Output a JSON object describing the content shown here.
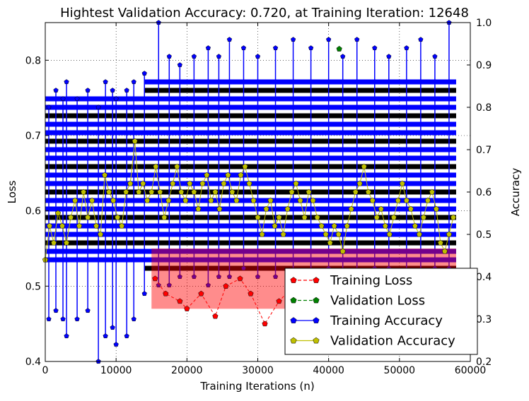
{
  "chart_data": {
    "type": "line",
    "title": "Hightest Validation Accuracy: 0.720, at Training Iteration: 12648",
    "xlabel": "Training Iterations (n)",
    "ylabel_left": "Loss",
    "ylabel_right": "Accuracy",
    "xlim": [
      0,
      60000
    ],
    "ylim_left": [
      0.4,
      0.85
    ],
    "ylim_right": [
      0.2,
      1.0
    ],
    "x_ticks": [
      0,
      10000,
      20000,
      30000,
      40000,
      50000,
      60000
    ],
    "x_tick_labels": [
      "0",
      "10000",
      "20000",
      "30000",
      "40000",
      "50000",
      "60000"
    ],
    "y_left_ticks": [
      0.4,
      0.5,
      0.6,
      0.7,
      0.8
    ],
    "y_left_tick_labels": [
      "0.4",
      "0.5",
      "0.6",
      "0.7",
      "0.8"
    ],
    "y_right_ticks": [
      0.2,
      0.3,
      0.4,
      0.5,
      0.6,
      0.7,
      0.8,
      0.9,
      1.0
    ],
    "y_right_tick_labels": [
      "0.2",
      "0.3",
      "0.4",
      "0.5",
      "0.6",
      "0.7",
      "0.8",
      "0.9",
      "1.0"
    ],
    "grid": true,
    "legend_position": "bottom-right",
    "series": [
      {
        "name": "Training Loss",
        "axis": "left",
        "color": "#ff0000",
        "style": "dashed",
        "marker": "pentagon",
        "band_x": [
          15000,
          58000
        ],
        "band_low": 0.47,
        "band_high": 0.55,
        "sample_x": [
          15500,
          17000,
          19000,
          20000,
          22000,
          24000,
          25500,
          27500,
          29000,
          31000,
          33000,
          35000,
          37000,
          40000,
          43000,
          46000,
          50000,
          54000,
          57000
        ],
        "sample_y": [
          0.51,
          0.49,
          0.48,
          0.47,
          0.49,
          0.46,
          0.5,
          0.51,
          0.49,
          0.45,
          0.48,
          0.5,
          0.49,
          0.52,
          0.51,
          0.49,
          0.51,
          0.5,
          0.52
        ]
      },
      {
        "name": "Validation Loss",
        "axis": "left",
        "color": "#008000",
        "style": "dashed",
        "marker": "pentagon",
        "x": [
          41500
        ],
        "y": [
          0.815
        ]
      },
      {
        "name": "Training Accuracy",
        "axis": "right",
        "color": "#0000ff",
        "style": "solid",
        "marker": "pentagon",
        "levels": [
          0.42,
          0.44,
          0.46,
          0.48,
          0.5,
          0.52,
          0.54,
          0.56,
          0.58,
          0.6,
          0.62,
          0.64,
          0.66,
          0.68,
          0.7,
          0.72,
          0.74,
          0.76,
          0.78,
          0.8,
          0.82,
          0.84,
          0.86
        ],
        "spike_x": [
          500,
          1500,
          2500,
          3000,
          4500,
          6000,
          7500,
          8500,
          9500,
          10000,
          11500,
          12500,
          14000,
          16000,
          17500,
          19000,
          21000,
          23000,
          24500,
          26000,
          28000,
          30000,
          32500,
          35000,
          37500,
          40000,
          42000,
          44000,
          46500,
          48500,
          51000,
          53000,
          55000,
          57000
        ],
        "spike_high": [
          0.8,
          0.84,
          0.82,
          0.86,
          0.82,
          0.84,
          0.8,
          0.86,
          0.84,
          0.82,
          0.84,
          0.86,
          0.88,
          1.0,
          0.92,
          0.9,
          0.92,
          0.94,
          0.92,
          0.96,
          0.94,
          0.92,
          0.94,
          0.96,
          0.94,
          0.96,
          0.92,
          0.96,
          0.94,
          0.92,
          0.94,
          0.96,
          0.92,
          1.0
        ],
        "spike_low": [
          0.3,
          0.32,
          0.3,
          0.26,
          0.3,
          0.32,
          0.2,
          0.26,
          0.28,
          0.24,
          0.26,
          0.3,
          0.36,
          0.38,
          0.38,
          0.4,
          0.4,
          0.38,
          0.4,
          0.4,
          0.42,
          0.4,
          0.4,
          0.4,
          0.4,
          0.42,
          0.4,
          0.4,
          0.42,
          0.42,
          0.4,
          0.4,
          0.42,
          0.42
        ]
      },
      {
        "name": "Validation Accuracy",
        "axis": "right",
        "color": "#bfbf00",
        "style": "solid",
        "marker": "pentagon",
        "x": [
          0,
          600,
          1200,
          1800,
          2400,
          3000,
          3600,
          4200,
          4800,
          5400,
          6000,
          6600,
          7200,
          7800,
          8400,
          9000,
          9600,
          10200,
          10800,
          11400,
          12000,
          12648,
          13200,
          13800,
          14400,
          15000,
          15600,
          16200,
          16800,
          17400,
          18000,
          18600,
          19200,
          19800,
          20400,
          21000,
          21600,
          22200,
          22800,
          23400,
          24000,
          24600,
          25200,
          25800,
          26400,
          27000,
          27600,
          28200,
          28800,
          29400,
          30000,
          30600,
          31200,
          31800,
          32400,
          33000,
          33600,
          34200,
          34800,
          35400,
          36000,
          36600,
          37200,
          37800,
          38400,
          39000,
          39600,
          40200,
          40800,
          41400,
          42000,
          42600,
          43200,
          43800,
          44400,
          45000,
          45600,
          46200,
          46800,
          47400,
          48000,
          48600,
          49200,
          49800,
          50400,
          51000,
          51600,
          52200,
          52800,
          53400,
          54000,
          54600,
          55200,
          55800,
          56400,
          57000,
          57600
        ],
        "y": [
          0.44,
          0.52,
          0.48,
          0.55,
          0.52,
          0.48,
          0.54,
          0.58,
          0.52,
          0.6,
          0.54,
          0.58,
          0.52,
          0.5,
          0.64,
          0.6,
          0.58,
          0.54,
          0.52,
          0.6,
          0.62,
          0.72,
          0.6,
          0.62,
          0.58,
          0.6,
          0.66,
          0.6,
          0.54,
          0.58,
          0.62,
          0.66,
          0.6,
          0.58,
          0.62,
          0.6,
          0.56,
          0.62,
          0.64,
          0.58,
          0.6,
          0.56,
          0.62,
          0.64,
          0.6,
          0.58,
          0.64,
          0.66,
          0.62,
          0.58,
          0.54,
          0.5,
          0.56,
          0.58,
          0.52,
          0.54,
          0.5,
          0.56,
          0.6,
          0.62,
          0.58,
          0.54,
          0.6,
          0.58,
          0.54,
          0.52,
          0.5,
          0.48,
          0.52,
          0.5,
          0.46,
          0.52,
          0.56,
          0.6,
          0.62,
          0.66,
          0.6,
          0.58,
          0.54,
          0.56,
          0.52,
          0.5,
          0.54,
          0.58,
          0.62,
          0.58,
          0.56,
          0.52,
          0.5,
          0.54,
          0.58,
          0.6,
          0.56,
          0.48,
          0.46,
          0.5,
          0.54
        ]
      }
    ]
  }
}
